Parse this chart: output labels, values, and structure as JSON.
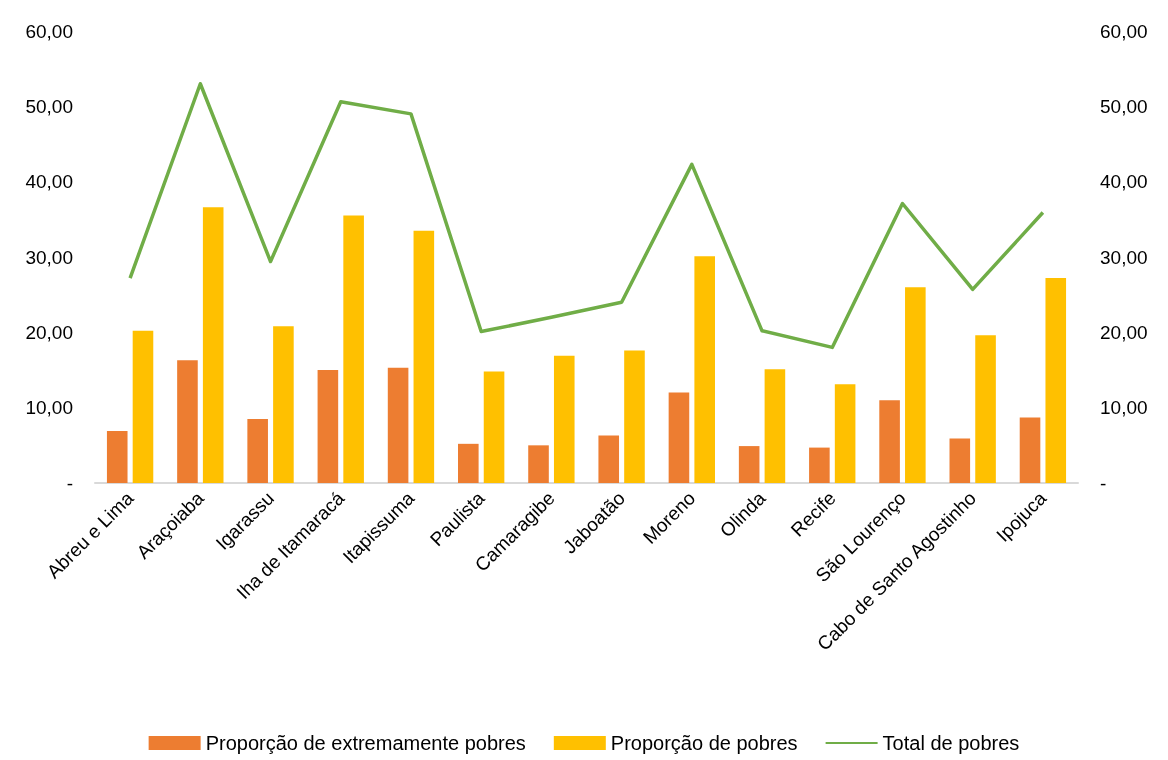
{
  "chart_data": {
    "type": "bar",
    "categories": [
      "Abreu e Lima",
      "Araçoiaba",
      "Igarassu",
      "Iha de Itamaracá",
      "Itapissuma",
      "Paulista",
      "Camaragibe",
      "Jaboatão",
      "Moreno",
      "Olinda",
      "Recife",
      "São Lourenço",
      "Cabo de Santo Agostinho",
      "Ipojuca"
    ],
    "series": [
      {
        "name": "Proporção de extremamente pobres",
        "color": "#ed7d31",
        "values": [
          6.9,
          16.3,
          8.5,
          15.0,
          15.3,
          5.2,
          5.0,
          6.3,
          12.0,
          4.9,
          4.7,
          11.0,
          5.9,
          8.7
        ]
      },
      {
        "name": "Proporção de pobres",
        "color": "#ffc000",
        "values": [
          20.2,
          36.6,
          20.8,
          35.5,
          33.5,
          14.8,
          16.9,
          17.6,
          30.1,
          15.1,
          13.1,
          26.0,
          19.6,
          27.2
        ]
      },
      {
        "name": "Total de pobres",
        "type": "line",
        "axis": "y2",
        "color": "#70ad47",
        "values": [
          27.2,
          53.0,
          29.4,
          50.6,
          49.0,
          20.1,
          22.0,
          24.0,
          42.3,
          20.2,
          18.0,
          37.1,
          25.7,
          35.9
        ]
      }
    ],
    "ylim": [
      0,
      60
    ],
    "yticks": [
      {
        "value": 0,
        "label": "-"
      },
      {
        "value": 10,
        "label": "10,00"
      },
      {
        "value": 20,
        "label": "20,00"
      },
      {
        "value": 30,
        "label": "30,00"
      },
      {
        "value": 40,
        "label": "40,00"
      },
      {
        "value": 50,
        "label": "50,00"
      },
      {
        "value": 60,
        "label": "60,00"
      }
    ],
    "y2lim": [
      0,
      60
    ],
    "y2ticks": [
      {
        "value": 0,
        "label": "-"
      },
      {
        "value": 10,
        "label": "10,00"
      },
      {
        "value": 20,
        "label": "20,00"
      },
      {
        "value": 30,
        "label": "30,00"
      },
      {
        "value": 40,
        "label": "40,00"
      },
      {
        "value": 50,
        "label": "50,00"
      },
      {
        "value": 60,
        "label": "60,00"
      }
    ],
    "grid": false,
    "legend": "bottom",
    "marker": "none"
  }
}
